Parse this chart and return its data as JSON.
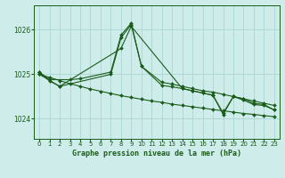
{
  "title": "Graphe pression niveau de la mer (hPa)",
  "background_color": "#ceecea",
  "plot_bg_color": "#ceecea",
  "grid_color": "#b0d8d4",
  "line_color": "#1a5c1a",
  "marker_color": "#1a5c1a",
  "xlim": [
    -0.5,
    23.5
  ],
  "ylim": [
    1023.55,
    1026.55
  ],
  "yticks": [
    1024,
    1025,
    1026
  ],
  "xticks": [
    0,
    1,
    2,
    3,
    4,
    5,
    6,
    7,
    8,
    9,
    10,
    11,
    12,
    13,
    14,
    15,
    16,
    17,
    18,
    19,
    20,
    21,
    22,
    23
  ],
  "line1_x": [
    0,
    1,
    3,
    4,
    7,
    8,
    9,
    10,
    12,
    13,
    14,
    15,
    16,
    17,
    18,
    19,
    20,
    21,
    22,
    23
  ],
  "line1_y": [
    1025.05,
    1024.88,
    1024.88,
    1024.9,
    1025.05,
    1025.88,
    1026.15,
    1025.18,
    1024.82,
    1024.78,
    1024.73,
    1024.68,
    1024.63,
    1024.6,
    1024.55,
    1024.5,
    1024.45,
    1024.4,
    1024.35,
    1024.3
  ],
  "line2_x": [
    0,
    1,
    2,
    7,
    8,
    9,
    10,
    12,
    13,
    14,
    15,
    16,
    17,
    18,
    19,
    20,
    21,
    22,
    23
  ],
  "line2_y": [
    1025.05,
    1024.85,
    1024.73,
    1025.0,
    1025.82,
    1026.12,
    1025.18,
    1024.75,
    1024.72,
    1024.68,
    1024.63,
    1024.58,
    1024.53,
    1024.13,
    1024.5,
    1024.45,
    1024.35,
    1024.32,
    1024.2
  ],
  "line3_x": [
    0,
    2,
    8,
    9,
    14,
    15,
    16,
    17,
    18,
    19,
    20,
    21,
    22,
    23
  ],
  "line3_y": [
    1025.0,
    1024.73,
    1025.58,
    1026.08,
    1024.68,
    1024.63,
    1024.58,
    1024.53,
    1024.1,
    1024.5,
    1024.42,
    1024.32,
    1024.3,
    1024.2
  ],
  "line4_x": [
    0,
    1,
    2,
    3,
    4,
    5,
    6,
    7,
    8,
    9,
    10,
    11,
    12,
    13,
    14,
    15,
    16,
    17,
    18,
    19,
    20,
    21,
    22,
    23
  ],
  "line4_y": [
    1025.0,
    1024.93,
    1024.86,
    1024.79,
    1024.73,
    1024.67,
    1024.62,
    1024.57,
    1024.52,
    1024.48,
    1024.44,
    1024.4,
    1024.37,
    1024.33,
    1024.3,
    1024.27,
    1024.24,
    1024.21,
    1024.18,
    1024.15,
    1024.12,
    1024.1,
    1024.07,
    1024.05
  ]
}
